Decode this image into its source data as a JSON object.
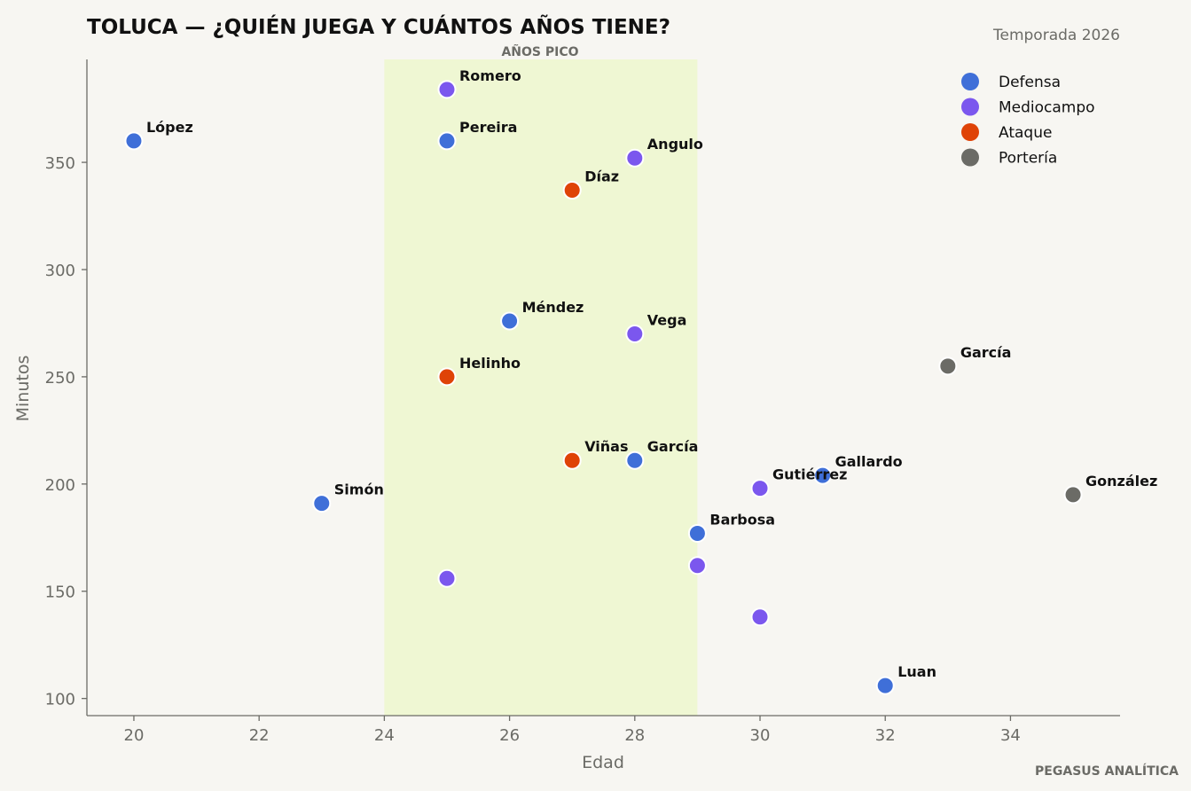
{
  "chart_data": {
    "type": "scatter",
    "title": "TOLUCA — ¿QUIÉN JUEGA Y CUÁNTOS AÑOS TIENE?",
    "subtitle": "Temporada 2026",
    "xlabel": "Edad",
    "ylabel": "Minutos",
    "xlim": [
      19.25,
      35.75
    ],
    "ylim": [
      92,
      398
    ],
    "xticks": [
      20,
      22,
      24,
      26,
      28,
      30,
      32,
      34
    ],
    "yticks": [
      100,
      150,
      200,
      250,
      300,
      350
    ],
    "grid": false,
    "legend_position": "top-right",
    "highlight_band": {
      "x_from": 24,
      "x_to": 29,
      "label": "AÑOS PICO",
      "color": "#eff7d3"
    },
    "credit": "PEGASUS ANALÍTICA",
    "series": [
      {
        "name": "Defensa",
        "color": "#3f6fd8",
        "points": [
          {
            "x": 20,
            "y": 360,
            "label": "López"
          },
          {
            "x": 25,
            "y": 360,
            "label": "Pereira"
          },
          {
            "x": 26,
            "y": 276,
            "label": "Méndez"
          },
          {
            "x": 28,
            "y": 211,
            "label": "García"
          },
          {
            "x": 23,
            "y": 191,
            "label": "Simón"
          },
          {
            "x": 31,
            "y": 204,
            "label": "Gallardo"
          },
          {
            "x": 29,
            "y": 177,
            "label": "Barbosa"
          },
          {
            "x": 32,
            "y": 106,
            "label": "Luan"
          }
        ]
      },
      {
        "name": "Mediocampo",
        "color": "#7b57ee",
        "points": [
          {
            "x": 25,
            "y": 384,
            "label": "Romero"
          },
          {
            "x": 28,
            "y": 352,
            "label": "Angulo"
          },
          {
            "x": 28,
            "y": 270,
            "label": "Vega"
          },
          {
            "x": 30,
            "y": 198,
            "label": "Gutiérrez"
          },
          {
            "x": 25,
            "y": 156,
            "label": ""
          },
          {
            "x": 29,
            "y": 162,
            "label": ""
          },
          {
            "x": 30,
            "y": 138,
            "label": ""
          }
        ]
      },
      {
        "name": "Ataque",
        "color": "#df4307",
        "points": [
          {
            "x": 27,
            "y": 337,
            "label": "Díaz"
          },
          {
            "x": 25,
            "y": 250,
            "label": "Helinho"
          },
          {
            "x": 27,
            "y": 211,
            "label": "Viñas"
          }
        ]
      },
      {
        "name": "Portería",
        "color": "#6b6b66",
        "points": [
          {
            "x": 33,
            "y": 255,
            "label": "García"
          },
          {
            "x": 35,
            "y": 195,
            "label": "González"
          }
        ]
      }
    ]
  }
}
